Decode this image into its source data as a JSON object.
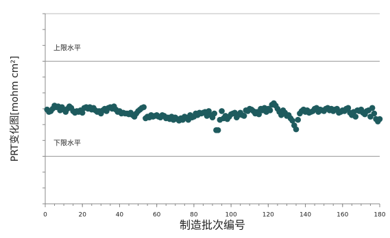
{
  "chart_data": {
    "type": "scatter",
    "y_label": "PRT变化图[mohm cm²]",
    "x_label": "制造批次编号",
    "color": "#1e5b5e",
    "xlim": [
      0,
      180
    ],
    "xticks": [
      0,
      20,
      40,
      60,
      80,
      100,
      120,
      140,
      160,
      180
    ],
    "xminorticks": [
      0,
      5,
      10,
      15,
      20,
      25,
      30,
      35,
      40,
      45,
      50,
      55,
      60,
      65,
      70,
      75,
      80,
      85,
      90,
      95,
      100,
      105,
      110,
      115,
      120,
      125,
      130,
      135,
      140,
      145,
      150,
      155,
      160,
      165,
      170,
      175,
      180
    ],
    "ylim": [
      0,
      12
    ],
    "yticks": [
      0,
      1,
      2,
      3,
      4,
      5,
      6,
      7,
      8,
      9,
      10,
      11,
      12
    ],
    "limits": [
      {
        "label": "上限水平",
        "value": 9
      },
      {
        "label": "下限水平",
        "value": 3
      }
    ],
    "x": [
      1,
      2,
      3,
      4,
      5,
      6,
      7,
      8,
      9,
      10,
      11,
      12,
      13,
      14,
      15,
      16,
      17,
      18,
      19,
      20,
      21,
      22,
      23,
      24,
      25,
      26,
      27,
      28,
      29,
      30,
      31,
      32,
      33,
      34,
      35,
      36,
      37,
      38,
      39,
      40,
      41,
      42,
      43,
      44,
      45,
      46,
      47,
      48,
      49,
      50,
      51,
      52,
      53,
      54,
      55,
      56,
      57,
      58,
      59,
      60,
      61,
      62,
      63,
      64,
      65,
      66,
      67,
      68,
      69,
      70,
      71,
      72,
      73,
      74,
      75,
      76,
      77,
      78,
      79,
      80,
      81,
      82,
      83,
      84,
      85,
      86,
      87,
      88,
      89,
      90,
      91,
      92,
      93,
      94,
      95,
      96,
      97,
      98,
      99,
      100,
      101,
      102,
      103,
      104,
      105,
      106,
      107,
      108,
      109,
      110,
      111,
      112,
      113,
      114,
      115,
      116,
      117,
      118,
      119,
      120,
      121,
      122,
      123,
      124,
      125,
      126,
      127,
      128,
      129,
      130,
      131,
      132,
      133,
      134,
      135,
      136,
      137,
      138,
      139,
      140,
      141,
      142,
      143,
      144,
      145,
      146,
      147,
      148,
      149,
      150,
      151,
      152,
      153,
      154,
      155,
      156,
      157,
      158,
      159,
      160,
      161,
      162,
      163,
      164,
      165,
      166,
      167,
      168,
      169,
      170,
      171,
      172,
      173,
      174,
      175,
      176,
      177,
      178,
      179,
      180
    ],
    "values": [
      5.95,
      5.8,
      5.85,
      6.0,
      6.2,
      6.1,
      6.15,
      5.9,
      6.1,
      5.95,
      5.8,
      6.0,
      6.15,
      6.05,
      5.85,
      5.75,
      5.85,
      5.8,
      5.9,
      5.75,
      6.05,
      6.1,
      6.0,
      6.1,
      5.95,
      6.05,
      5.9,
      5.8,
      5.85,
      5.7,
      5.9,
      6.0,
      5.85,
      6.05,
      6.1,
      6.0,
      6.15,
      5.95,
      5.8,
      5.85,
      5.7,
      5.75,
      5.7,
      5.7,
      5.65,
      5.75,
      5.6,
      5.5,
      5.7,
      5.85,
      5.95,
      6.05,
      6.1,
      5.4,
      5.5,
      5.45,
      5.6,
      5.5,
      5.55,
      5.6,
      5.5,
      5.45,
      5.6,
      5.55,
      5.4,
      5.45,
      5.35,
      5.5,
      5.3,
      5.45,
      5.35,
      5.25,
      5.4,
      5.3,
      5.5,
      5.45,
      5.3,
      5.6,
      5.45,
      5.5,
      5.7,
      5.6,
      5.75,
      5.7,
      5.75,
      5.8,
      5.55,
      5.85,
      5.6,
      5.45,
      5.7,
      4.65,
      4.65,
      5.3,
      5.85,
      5.4,
      5.55,
      5.35,
      5.5,
      5.65,
      5.7,
      5.75,
      5.45,
      5.6,
      5.75,
      5.6,
      5.55,
      5.9,
      5.85,
      6.0,
      5.95,
      5.85,
      5.7,
      5.8,
      5.65,
      6.0,
      5.9,
      6.05,
      5.8,
      6.0,
      5.9,
      6.25,
      6.35,
      6.2,
      6.0,
      5.8,
      5.6,
      5.9,
      5.75,
      5.55,
      5.6,
      5.4,
      5.25,
      4.95,
      4.7,
      5.3,
      5.7,
      5.85,
      5.95,
      5.8,
      5.9,
      5.75,
      5.8,
      5.85,
      6.0,
      6.05,
      5.8,
      5.95,
      5.9,
      5.85,
      6.0,
      6.05,
      5.9,
      6.0,
      5.85,
      5.95,
      6.0,
      5.75,
      5.8,
      5.9,
      5.85,
      6.0,
      6.05,
      5.75,
      5.6,
      5.8,
      5.5,
      5.9,
      5.85,
      5.95,
      5.75,
      5.65,
      5.85,
      5.9,
      5.5,
      6.05,
      5.7,
      5.35,
      5.2,
      5.35
    ]
  }
}
